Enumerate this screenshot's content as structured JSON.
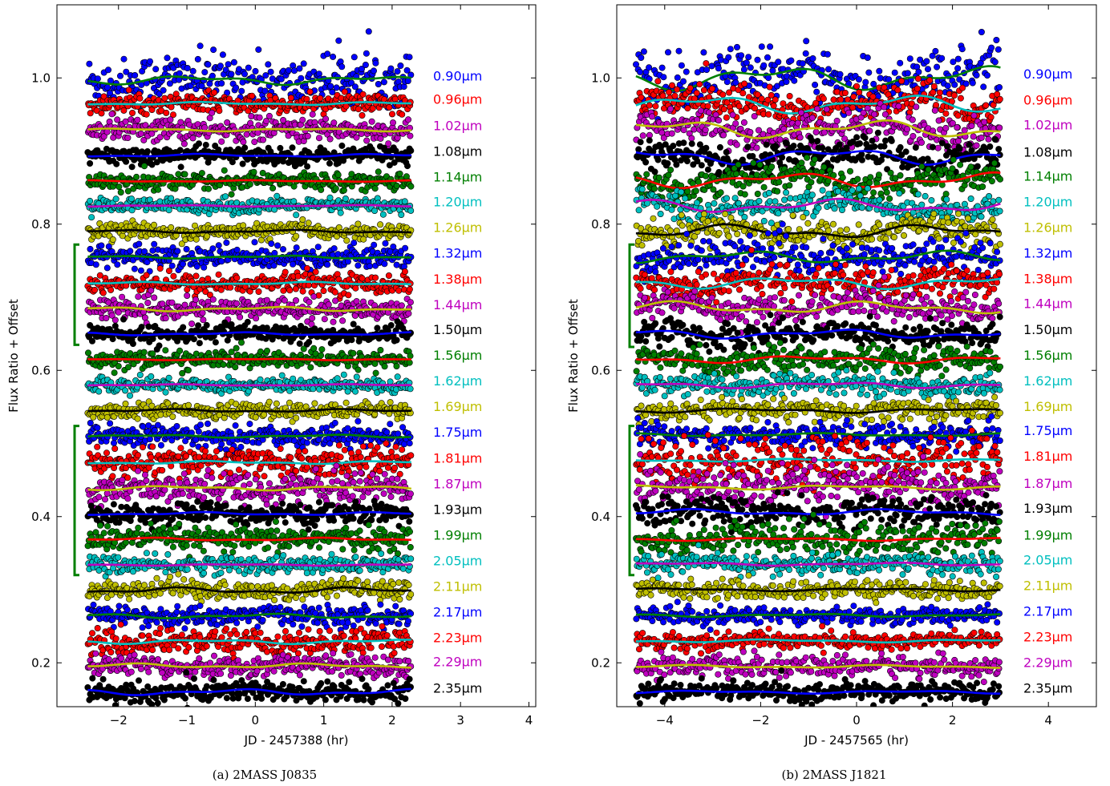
{
  "colors": {
    "blue": "#0000ff",
    "red": "#ff0000",
    "magenta": "#bf00bf",
    "black": "#000000",
    "green": "#007f00",
    "cyan": "#00bfbf",
    "yellow": "#bfbf00",
    "bracket": "#007f00"
  },
  "chart_data": [
    {
      "type": "scatter",
      "caption": "(a) 2MASS J0835",
      "xlabel": "JD - 2457388 (hr)",
      "ylabel": "Flux Ratio + Offset",
      "xlim": [
        -2.9,
        4.1
      ],
      "ylim": [
        0.14,
        1.1
      ],
      "xticks": [
        -2,
        -1,
        0,
        1,
        2,
        3,
        4
      ],
      "xtick_labels": [
        "−2",
        "−1",
        "0",
        "1",
        "2",
        "3",
        "4"
      ],
      "yticks": [
        0.2,
        0.4,
        0.6,
        0.8,
        1.0
      ],
      "ytick_labels": [
        "0.2",
        "0.4",
        "0.6",
        "0.8",
        "1.0"
      ],
      "x_range": [
        -2.45,
        2.28
      ],
      "brackets": [
        [
          0.635,
          0.772
        ],
        [
          0.32,
          0.524
        ]
      ],
      "series": [
        {
          "label": "0.90μm",
          "offset": 0.997,
          "color": "blue",
          "fit": "green",
          "noise": 0.017,
          "amp": 0.006
        },
        {
          "label": "0.96μm",
          "offset": 0.965,
          "color": "red",
          "fit": "cyan",
          "noise": 0.006,
          "amp": 0.002
        },
        {
          "label": "1.02μm",
          "offset": 0.929,
          "color": "magenta",
          "fit": "yellow",
          "noise": 0.008,
          "amp": 0.002
        },
        {
          "label": "1.08μm",
          "offset": 0.894,
          "color": "black",
          "fit": "blue",
          "noise": 0.006,
          "amp": 0.002
        },
        {
          "label": "1.14μm",
          "offset": 0.859,
          "color": "green",
          "fit": "red",
          "noise": 0.006,
          "amp": 0.001
        },
        {
          "label": "1.20μm",
          "offset": 0.825,
          "color": "cyan",
          "fit": "magenta",
          "noise": 0.005,
          "amp": 0.001
        },
        {
          "label": "1.26μm",
          "offset": 0.79,
          "color": "yellow",
          "fit": "black",
          "noise": 0.005,
          "amp": 0.002
        },
        {
          "label": "1.32μm",
          "offset": 0.755,
          "color": "blue",
          "fit": "green",
          "noise": 0.008,
          "amp": 0.002
        },
        {
          "label": "1.38μm",
          "offset": 0.719,
          "color": "red",
          "fit": "cyan",
          "noise": 0.007,
          "amp": 0.002
        },
        {
          "label": "1.44μm",
          "offset": 0.684,
          "color": "magenta",
          "fit": "yellow",
          "noise": 0.007,
          "amp": 0.003
        },
        {
          "label": "1.50μm",
          "offset": 0.65,
          "color": "black",
          "fit": "blue",
          "noise": 0.006,
          "amp": 0.002
        },
        {
          "label": "1.56μm",
          "offset": 0.615,
          "color": "green",
          "fit": "red",
          "noise": 0.006,
          "amp": 0.001
        },
        {
          "label": "1.62μm",
          "offset": 0.58,
          "color": "cyan",
          "fit": "magenta",
          "noise": 0.005,
          "amp": 0.001
        },
        {
          "label": "1.69μm",
          "offset": 0.545,
          "color": "yellow",
          "fit": "black",
          "noise": 0.005,
          "amp": 0.002
        },
        {
          "label": "1.75μm",
          "offset": 0.51,
          "color": "blue",
          "fit": "green",
          "noise": 0.007,
          "amp": 0.002
        },
        {
          "label": "1.81μm",
          "offset": 0.474,
          "color": "red",
          "fit": "cyan",
          "noise": 0.01,
          "amp": 0.002
        },
        {
          "label": "1.87μm",
          "offset": 0.439,
          "color": "magenta",
          "fit": "yellow",
          "noise": 0.01,
          "amp": 0.003
        },
        {
          "label": "1.93μm",
          "offset": 0.404,
          "color": "black",
          "fit": "blue",
          "noise": 0.007,
          "amp": 0.002
        },
        {
          "label": "1.99μm",
          "offset": 0.369,
          "color": "green",
          "fit": "red",
          "noise": 0.008,
          "amp": 0.002
        },
        {
          "label": "2.05μm",
          "offset": 0.334,
          "color": "cyan",
          "fit": "magenta",
          "noise": 0.006,
          "amp": 0.001
        },
        {
          "label": "2.11μm",
          "offset": 0.299,
          "color": "yellow",
          "fit": "black",
          "noise": 0.006,
          "amp": 0.004
        },
        {
          "label": "2.17μm",
          "offset": 0.264,
          "color": "blue",
          "fit": "green",
          "noise": 0.007,
          "amp": 0.003
        },
        {
          "label": "2.23μm",
          "offset": 0.229,
          "color": "red",
          "fit": "cyan",
          "noise": 0.008,
          "amp": 0.003
        },
        {
          "label": "2.29μm",
          "offset": 0.196,
          "color": "magenta",
          "fit": "yellow",
          "noise": 0.007,
          "amp": 0.003
        },
        {
          "label": "2.35μm",
          "offset": 0.16,
          "color": "black",
          "fit": "blue",
          "noise": 0.008,
          "amp": 0.004
        }
      ]
    },
    {
      "type": "scatter",
      "caption": "(b) 2MASS J1821",
      "xlabel": "JD - 2457565 (hr)",
      "ylabel": "Flux Ratio + Offset",
      "xlim": [
        -5.0,
        5.0
      ],
      "ylim": [
        0.14,
        1.1
      ],
      "xticks": [
        -4,
        -2,
        0,
        2,
        4
      ],
      "xtick_labels": [
        "−4",
        "−2",
        "0",
        "2",
        "4"
      ],
      "yticks": [
        0.2,
        0.4,
        0.6,
        0.8,
        1.0
      ],
      "ytick_labels": [
        "0.2",
        "0.4",
        "0.6",
        "0.8",
        "1.0"
      ],
      "x_range": [
        -4.6,
        3.0
      ],
      "brackets": [
        [
          0.632,
          0.772
        ],
        [
          0.32,
          0.524
        ]
      ],
      "series": [
        {
          "label": "0.90μm",
          "offset": 1.0,
          "color": "blue",
          "fit": "green",
          "noise": 0.017,
          "amp": 0.016
        },
        {
          "label": "0.96μm",
          "offset": 0.964,
          "color": "red",
          "fit": "cyan",
          "noise": 0.012,
          "amp": 0.012
        },
        {
          "label": "1.02μm",
          "offset": 0.93,
          "color": "magenta",
          "fit": "yellow",
          "noise": 0.012,
          "amp": 0.012
        },
        {
          "label": "1.08μm",
          "offset": 0.893,
          "color": "black",
          "fit": "blue",
          "noise": 0.011,
          "amp": 0.011
        },
        {
          "label": "1.14μm",
          "offset": 0.86,
          "color": "green",
          "fit": "red",
          "noise": 0.01,
          "amp": 0.01
        },
        {
          "label": "1.20μm",
          "offset": 0.825,
          "color": "cyan",
          "fit": "magenta",
          "noise": 0.009,
          "amp": 0.009
        },
        {
          "label": "1.26μm",
          "offset": 0.79,
          "color": "yellow",
          "fit": "black",
          "noise": 0.009,
          "amp": 0.009
        },
        {
          "label": "1.32μm",
          "offset": 0.755,
          "color": "blue",
          "fit": "green",
          "noise": 0.011,
          "amp": 0.008
        },
        {
          "label": "1.38μm",
          "offset": 0.72,
          "color": "red",
          "fit": "cyan",
          "noise": 0.011,
          "amp": 0.008
        },
        {
          "label": "1.44μm",
          "offset": 0.686,
          "color": "magenta",
          "fit": "yellow",
          "noise": 0.01,
          "amp": 0.008
        },
        {
          "label": "1.50μm",
          "offset": 0.65,
          "color": "black",
          "fit": "blue",
          "noise": 0.009,
          "amp": 0.006
        },
        {
          "label": "1.56μm",
          "offset": 0.615,
          "color": "green",
          "fit": "red",
          "noise": 0.008,
          "amp": 0.005
        },
        {
          "label": "1.62μm",
          "offset": 0.58,
          "color": "cyan",
          "fit": "magenta",
          "noise": 0.007,
          "amp": 0.004
        },
        {
          "label": "1.69μm",
          "offset": 0.545,
          "color": "yellow",
          "fit": "black",
          "noise": 0.007,
          "amp": 0.003
        },
        {
          "label": "1.75μm",
          "offset": 0.512,
          "color": "blue",
          "fit": "green",
          "noise": 0.008,
          "amp": 0.002
        },
        {
          "label": "1.81μm",
          "offset": 0.477,
          "color": "red",
          "fit": "cyan",
          "noise": 0.016,
          "amp": 0.002
        },
        {
          "label": "1.87μm",
          "offset": 0.44,
          "color": "magenta",
          "fit": "yellow",
          "noise": 0.014,
          "amp": 0.003
        },
        {
          "label": "1.93μm",
          "offset": 0.406,
          "color": "black",
          "fit": "blue",
          "noise": 0.01,
          "amp": 0.004
        },
        {
          "label": "1.99μm",
          "offset": 0.369,
          "color": "green",
          "fit": "red",
          "noise": 0.011,
          "amp": 0.002
        },
        {
          "label": "2.05μm",
          "offset": 0.335,
          "color": "cyan",
          "fit": "magenta",
          "noise": 0.007,
          "amp": 0.002
        },
        {
          "label": "2.11μm",
          "offset": 0.3,
          "color": "yellow",
          "fit": "black",
          "noise": 0.006,
          "amp": 0.002
        },
        {
          "label": "2.17μm",
          "offset": 0.265,
          "color": "blue",
          "fit": "green",
          "noise": 0.006,
          "amp": 0.002
        },
        {
          "label": "2.23μm",
          "offset": 0.23,
          "color": "red",
          "fit": "cyan",
          "noise": 0.006,
          "amp": 0.002
        },
        {
          "label": "2.29μm",
          "offset": 0.195,
          "color": "magenta",
          "fit": "yellow",
          "noise": 0.007,
          "amp": 0.002
        },
        {
          "label": "2.35μm",
          "offset": 0.16,
          "color": "black",
          "fit": "blue",
          "noise": 0.007,
          "amp": 0.002
        }
      ]
    }
  ]
}
